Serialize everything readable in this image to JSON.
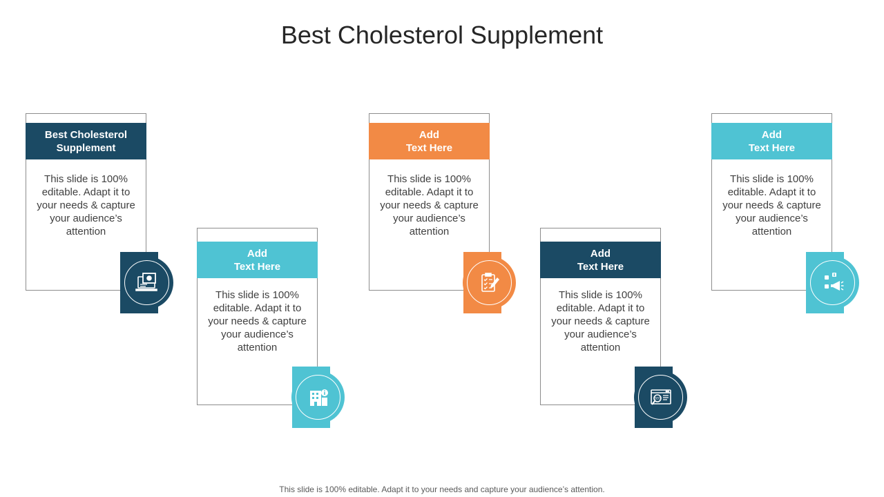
{
  "slide": {
    "title": "Best Cholesterol Supplement",
    "footer": "This slide is 100% editable. Adapt it to your needs and capture your audience’s attention."
  },
  "colors": {
    "dark_blue": "#1b4a64",
    "orange": "#f28a45",
    "cyan": "#4fc3d3"
  },
  "cards": [
    {
      "header": "Best Cholesterol\nSupplement",
      "body": "This slide is 100% editable. Adapt it to your needs & capture your audience’s attention",
      "color": "dark_blue",
      "icon": "laptop-gear-icon"
    },
    {
      "header": "Add\nText Here",
      "body": "This slide is 100% editable. Adapt it to your needs & capture your audience’s attention",
      "color": "cyan",
      "icon": "building-info-icon"
    },
    {
      "header": "Add\nText Here",
      "body": "This slide is 100% editable. Adapt it to your needs & capture your audience’s attention",
      "color": "orange",
      "icon": "clipboard-checklist-icon"
    },
    {
      "header": "Add\nText Here",
      "body": "This slide is 100% editable. Adapt it to your needs & capture your audience’s attention",
      "color": "dark_blue",
      "icon": "seo-browser-icon"
    },
    {
      "header": "Add\nText Here",
      "body": "This slide is 100% editable. Adapt it to your needs & capture your audience’s attention",
      "color": "cyan",
      "icon": "social-megaphone-icon"
    }
  ]
}
